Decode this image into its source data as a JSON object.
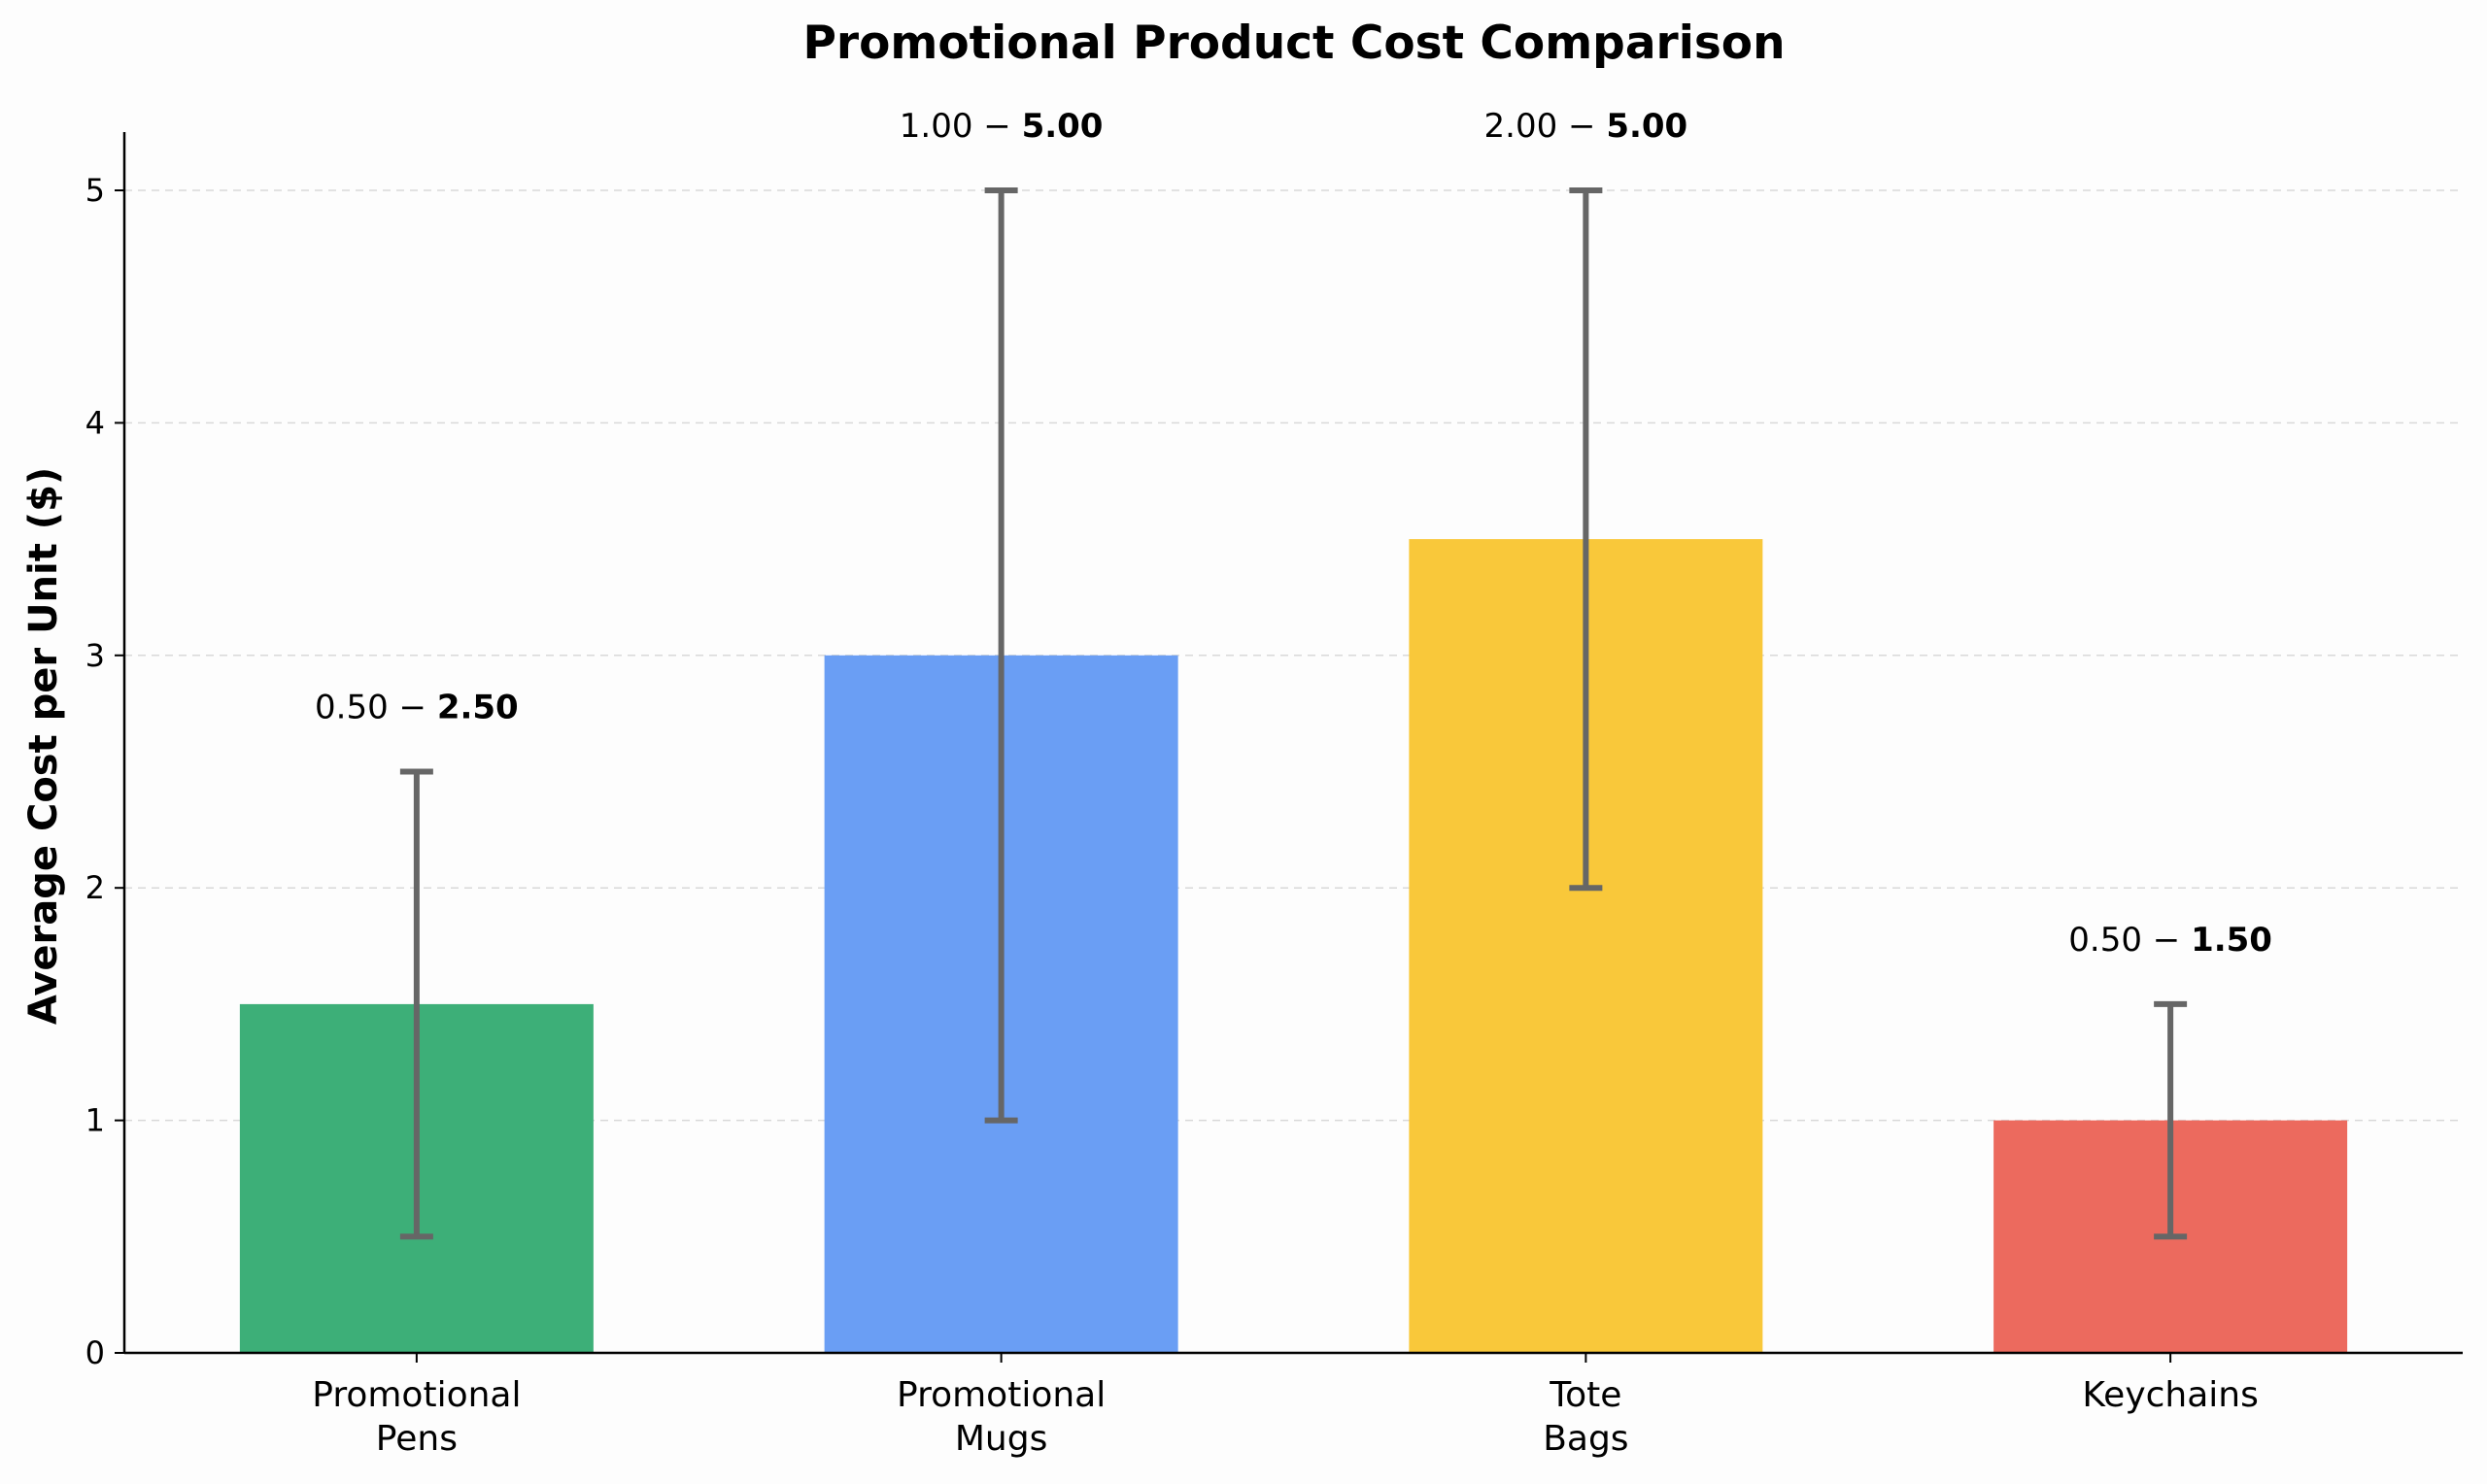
{
  "chart_data": {
    "type": "bar",
    "title": "Promotional Product Cost Comparison",
    "xlabel": "",
    "ylabel": "Average Cost per Unit ($)",
    "ylim": [
      0,
      5.25
    ],
    "yticks": [
      0,
      1,
      2,
      3,
      4,
      5
    ],
    "grid": "y-dashed",
    "categories": [
      [
        "Promotional",
        "Pens"
      ],
      [
        "Promotional",
        "Mugs"
      ],
      [
        "Tote",
        "Bags"
      ],
      [
        "Keychains"
      ]
    ],
    "values": [
      1.5,
      3.0,
      3.5,
      1.0
    ],
    "ranges": [
      [
        0.5,
        2.5
      ],
      [
        1.0,
        5.0
      ],
      [
        2.0,
        5.0
      ],
      [
        0.5,
        1.5
      ]
    ],
    "range_labels": [
      {
        "low": "0.50",
        "high": "2.50"
      },
      {
        "low": "1.00",
        "high": "5.00"
      },
      {
        "low": "2.00",
        "high": "5.00"
      },
      {
        "low": "0.50",
        "high": "1.50"
      }
    ],
    "colors": [
      "#3daf78",
      "#6a9ef4",
      "#f9c83a",
      "#ec6a5e"
    ],
    "error_bar_color": "#666666"
  }
}
